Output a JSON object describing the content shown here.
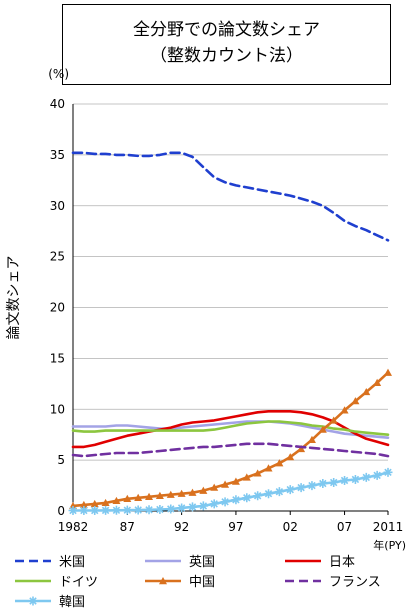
{
  "chart_data": {
    "type": "line",
    "title": "全分野での論文数シェア",
    "subtitle": "（整数カウント法）",
    "ylabel": "論文数シェア",
    "yunit": "(%)",
    "xunit": "年(PY)",
    "ylim": [
      0,
      40
    ],
    "yticks": [
      0,
      5,
      10,
      15,
      20,
      25,
      30,
      35,
      40
    ],
    "xticks": [
      {
        "x": 1982,
        "label": "1982"
      },
      {
        "x": 1987,
        "label": "87"
      },
      {
        "x": 1992,
        "label": "92"
      },
      {
        "x": 1997,
        "label": "97"
      },
      {
        "x": 2002,
        "label": "02"
      },
      {
        "x": 2007,
        "label": "07"
      },
      {
        "x": 2011,
        "label": "2011"
      }
    ],
    "xlim": [
      1982,
      2011
    ],
    "grid": "horizontal",
    "x": [
      1982,
      1983,
      1984,
      1985,
      1986,
      1987,
      1988,
      1989,
      1990,
      1991,
      1992,
      1993,
      1994,
      1995,
      1996,
      1997,
      1998,
      1999,
      2000,
      2001,
      2002,
      2003,
      2004,
      2005,
      2006,
      2007,
      2008,
      2009,
      2010,
      2011
    ],
    "series": [
      {
        "name": "米国",
        "color": "#1f3fcf",
        "dash": "dashed",
        "marker": "none",
        "values": [
          35.2,
          35.2,
          35.1,
          35.1,
          35.0,
          35.0,
          34.9,
          34.9,
          35.0,
          35.2,
          35.2,
          34.8,
          33.8,
          32.8,
          32.3,
          32.0,
          31.8,
          31.6,
          31.4,
          31.2,
          31.0,
          30.7,
          30.4,
          30.0,
          29.3,
          28.5,
          28.0,
          27.6,
          27.1,
          26.6
        ]
      },
      {
        "name": "英国",
        "color": "#a3a3e6",
        "dash": "solid",
        "marker": "none",
        "values": [
          8.3,
          8.3,
          8.3,
          8.3,
          8.4,
          8.4,
          8.3,
          8.2,
          8.1,
          8.1,
          8.2,
          8.3,
          8.4,
          8.5,
          8.6,
          8.7,
          8.8,
          8.8,
          8.8,
          8.7,
          8.6,
          8.4,
          8.2,
          8.0,
          7.8,
          7.6,
          7.5,
          7.4,
          7.3,
          7.2
        ]
      },
      {
        "name": "日本",
        "color": "#e00000",
        "dash": "solid",
        "marker": "none",
        "values": [
          6.3,
          6.3,
          6.5,
          6.8,
          7.1,
          7.4,
          7.6,
          7.8,
          8.0,
          8.2,
          8.5,
          8.7,
          8.8,
          8.9,
          9.1,
          9.3,
          9.5,
          9.7,
          9.8,
          9.8,
          9.8,
          9.7,
          9.5,
          9.2,
          8.8,
          8.2,
          7.6,
          7.1,
          6.8,
          6.5
        ]
      },
      {
        "name": "ドイツ",
        "color": "#8cc63f",
        "dash": "solid",
        "marker": "none",
        "values": [
          7.9,
          7.8,
          7.8,
          7.9,
          7.9,
          7.9,
          7.9,
          7.9,
          7.9,
          7.9,
          7.9,
          7.9,
          7.9,
          8.0,
          8.2,
          8.4,
          8.6,
          8.7,
          8.8,
          8.8,
          8.7,
          8.6,
          8.4,
          8.3,
          8.1,
          8.0,
          7.8,
          7.7,
          7.6,
          7.5
        ]
      },
      {
        "name": "中国",
        "color": "#d9711e",
        "dash": "solid",
        "marker": "triangle",
        "values": [
          0.5,
          0.6,
          0.7,
          0.8,
          1.0,
          1.2,
          1.3,
          1.4,
          1.5,
          1.6,
          1.7,
          1.8,
          2.0,
          2.3,
          2.6,
          2.9,
          3.3,
          3.7,
          4.2,
          4.7,
          5.3,
          6.1,
          7.0,
          8.0,
          8.9,
          9.9,
          10.8,
          11.7,
          12.6,
          13.6
        ]
      },
      {
        "name": "フランス",
        "color": "#7030a0",
        "dash": "dashed",
        "marker": "none",
        "values": [
          5.5,
          5.4,
          5.5,
          5.6,
          5.7,
          5.7,
          5.7,
          5.8,
          5.9,
          6.0,
          6.1,
          6.2,
          6.3,
          6.3,
          6.4,
          6.5,
          6.6,
          6.6,
          6.6,
          6.5,
          6.4,
          6.3,
          6.2,
          6.1,
          6.0,
          5.9,
          5.8,
          5.7,
          5.6,
          5.4
        ]
      },
      {
        "name": "韓国",
        "color": "#7ec8f0",
        "dash": "solid",
        "marker": "star",
        "values": [
          0.05,
          0.05,
          0.05,
          0.06,
          0.07,
          0.08,
          0.1,
          0.12,
          0.15,
          0.2,
          0.3,
          0.4,
          0.5,
          0.7,
          0.9,
          1.1,
          1.3,
          1.5,
          1.7,
          1.9,
          2.1,
          2.3,
          2.5,
          2.7,
          2.8,
          3.0,
          3.1,
          3.3,
          3.5,
          3.8
        ]
      }
    ],
    "legend": "bottom"
  }
}
